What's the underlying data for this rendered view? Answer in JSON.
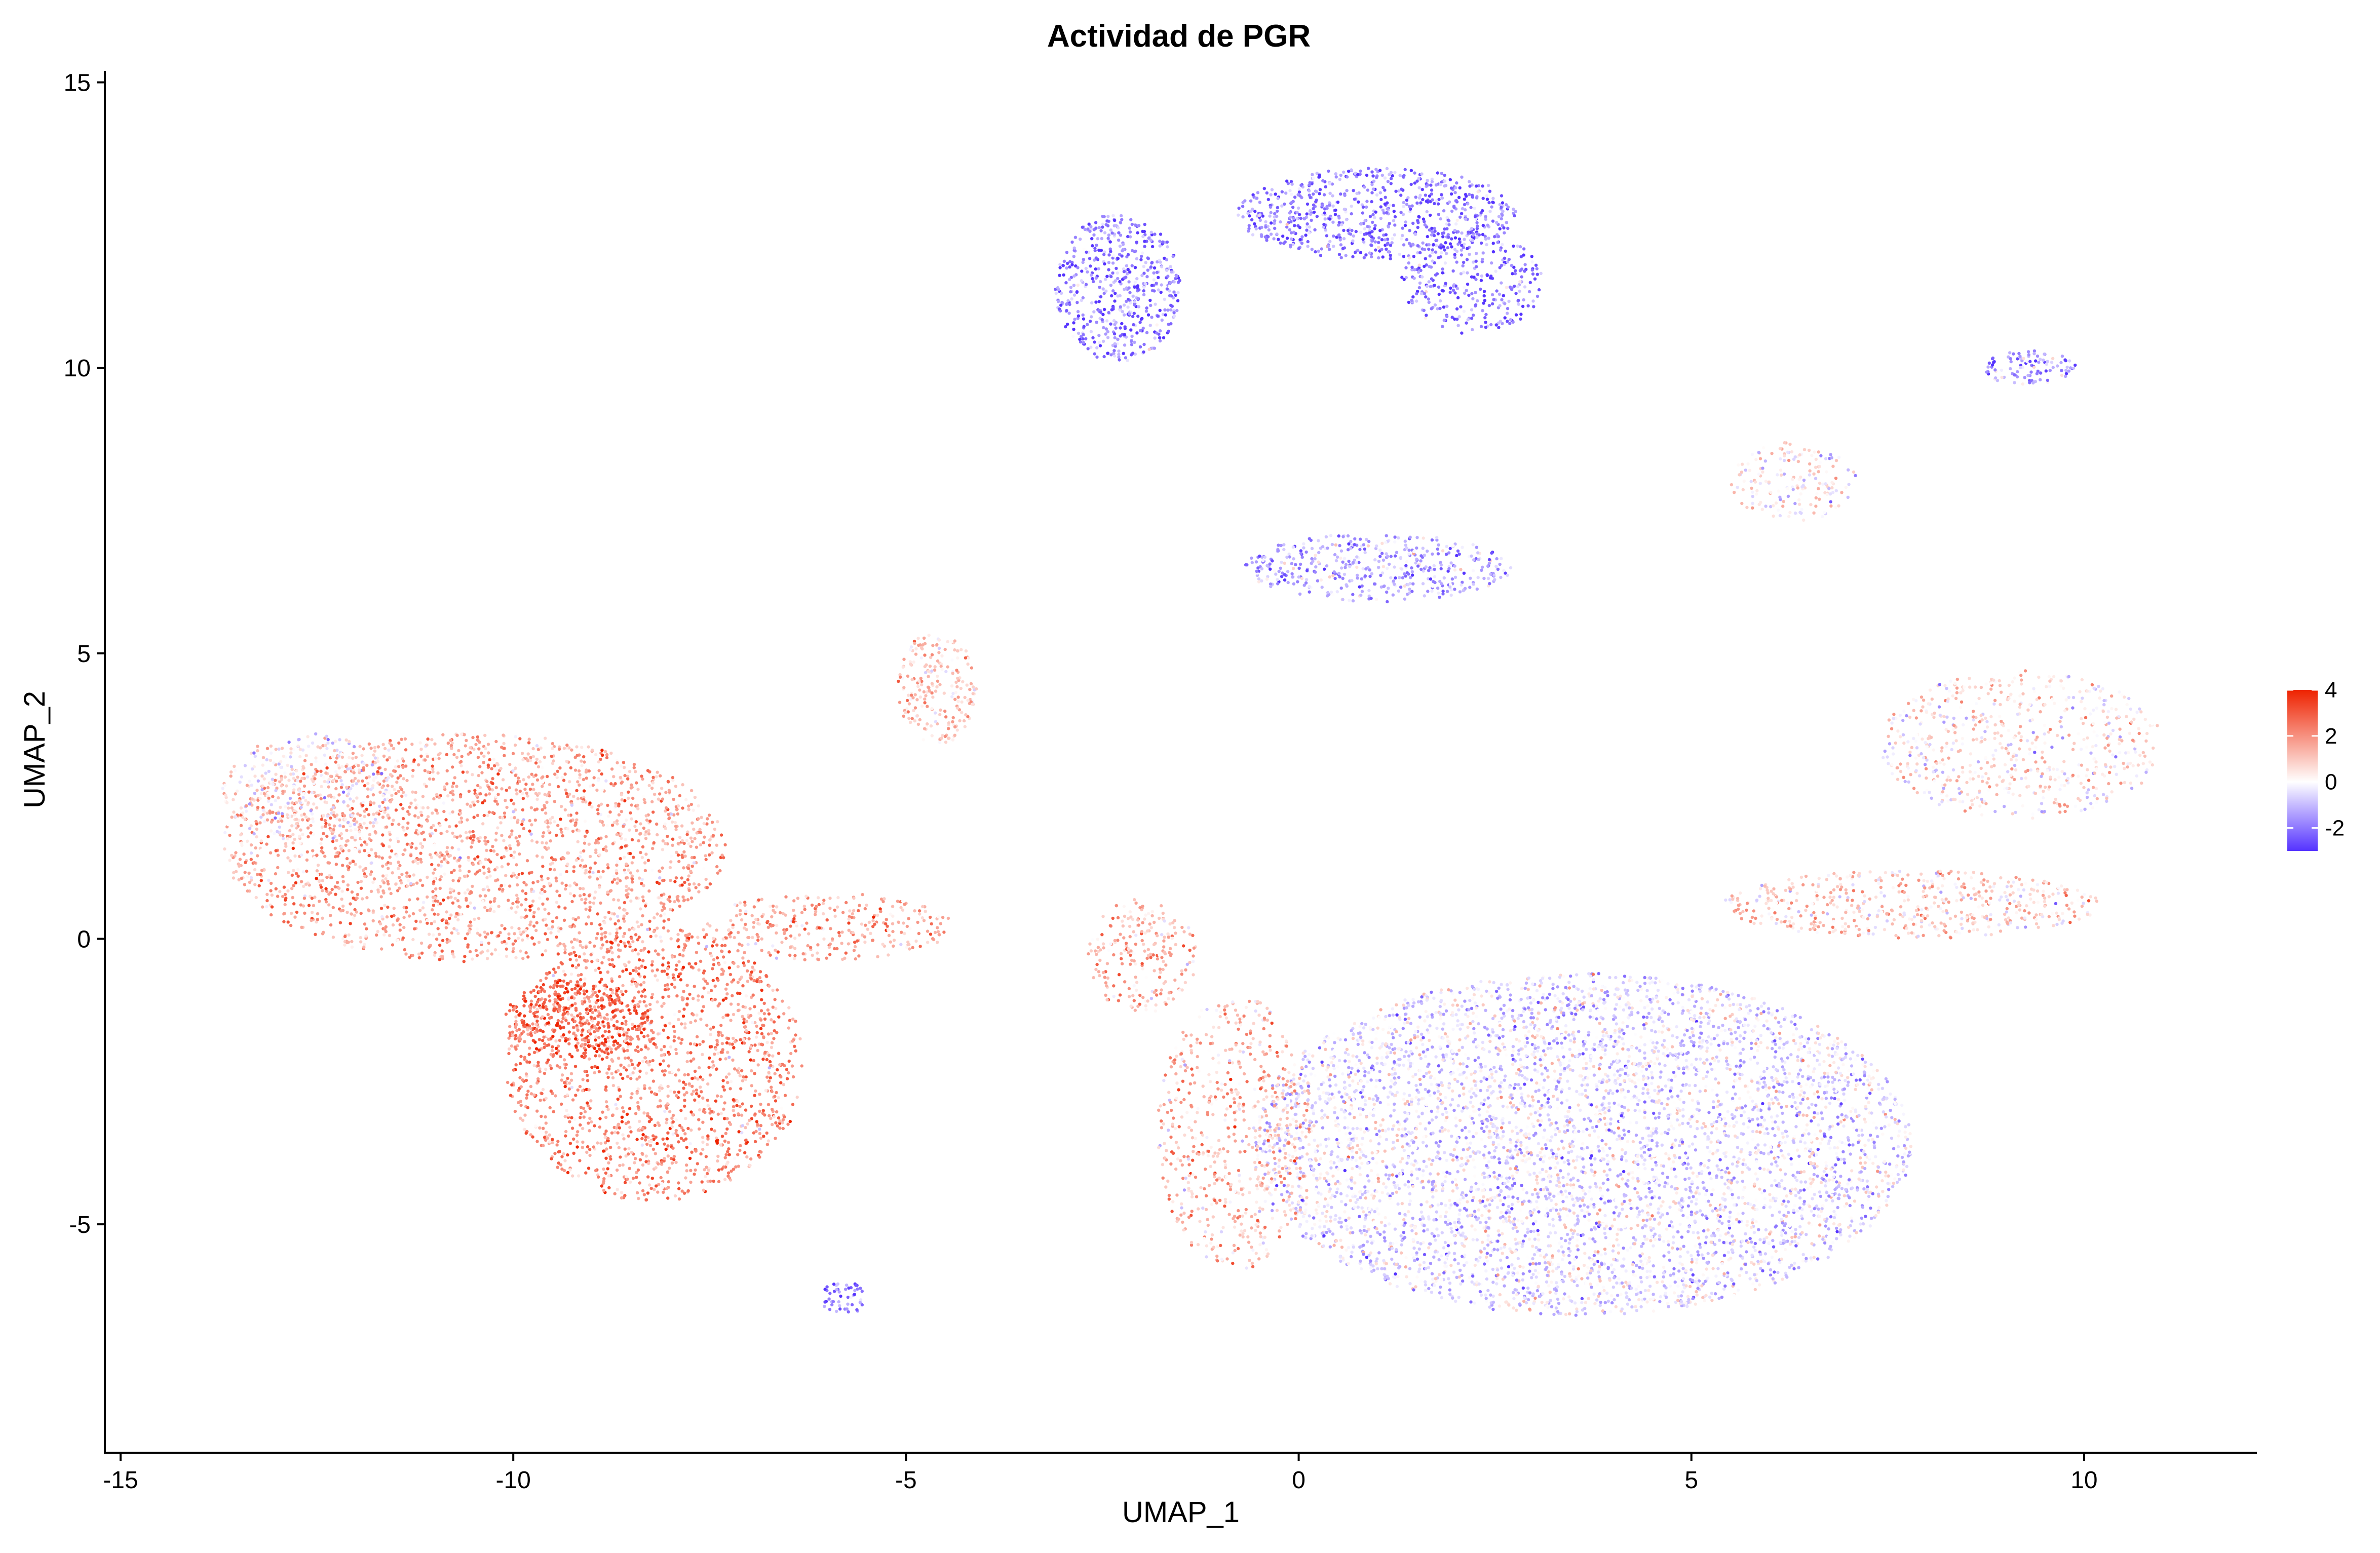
{
  "chart_data": {
    "type": "scatter",
    "title": "Actividad de PGR",
    "xlabel": "UMAP_1",
    "ylabel": "UMAP_2",
    "xlim": [
      -15.2,
      12.2
    ],
    "ylim": [
      -9.0,
      15.2
    ],
    "x_ticks": [
      -15,
      -10,
      -5,
      0,
      5,
      10
    ],
    "y_ticks": [
      -5,
      0,
      5,
      10,
      15
    ],
    "x_tick_labels": [
      "-15",
      "-10",
      "-5",
      "0",
      "5",
      "10"
    ],
    "y_tick_labels": [
      "-5",
      "0",
      "5",
      "10",
      "15"
    ],
    "grid": false,
    "legend": {
      "placement": "right",
      "type": "colorbar",
      "ticks": [
        4,
        2,
        0,
        -2
      ],
      "tick_labels": [
        "4",
        "2",
        "0",
        "-2"
      ],
      "range": [
        -3,
        4
      ],
      "colors": {
        "low": "#5533ff",
        "mid": "#ffffff",
        "high": "#ee2200"
      }
    },
    "clusters": [
      {
        "cx": -10.5,
        "cy": 1.6,
        "rx": 3.2,
        "ry": 2.0,
        "n": 9000,
        "activity": 1.6
      },
      {
        "cx": -8.2,
        "cy": -2.2,
        "rx": 1.9,
        "ry": 2.4,
        "n": 6500,
        "activity": 2.0
      },
      {
        "cx": -9.2,
        "cy": -1.4,
        "rx": 0.9,
        "ry": 0.7,
        "n": 1500,
        "activity": 2.8
      },
      {
        "cx": -12.6,
        "cy": 2.6,
        "rx": 1.1,
        "ry": 1.0,
        "n": 1400,
        "activity": 0.3
      },
      {
        "cx": -6.0,
        "cy": 0.2,
        "rx": 1.6,
        "ry": 0.6,
        "n": 1200,
        "activity": 1.5
      },
      {
        "cx": -4.6,
        "cy": 4.4,
        "rx": 0.5,
        "ry": 1.0,
        "n": 900,
        "activity": 1.0
      },
      {
        "cx": -2.3,
        "cy": 11.4,
        "rx": 0.8,
        "ry": 1.3,
        "n": 2200,
        "activity": -1.8
      },
      {
        "cx": 1.0,
        "cy": 12.7,
        "rx": 1.8,
        "ry": 0.8,
        "n": 3000,
        "activity": -1.9
      },
      {
        "cx": 2.2,
        "cy": 11.5,
        "rx": 0.9,
        "ry": 0.9,
        "n": 1200,
        "activity": -2.1
      },
      {
        "cx": 1.0,
        "cy": 6.5,
        "rx": 1.7,
        "ry": 0.6,
        "n": 1800,
        "activity": -1.2
      },
      {
        "cx": 9.2,
        "cy": 3.4,
        "rx": 1.8,
        "ry": 1.3,
        "n": 2600,
        "activity": 0.4
      },
      {
        "cx": 6.3,
        "cy": 8.0,
        "rx": 0.8,
        "ry": 0.7,
        "n": 700,
        "activity": 0.2
      },
      {
        "cx": 9.3,
        "cy": 10.0,
        "rx": 0.6,
        "ry": 0.3,
        "n": 400,
        "activity": -1.5
      },
      {
        "cx": 3.6,
        "cy": -3.6,
        "rx": 4.2,
        "ry": 3.0,
        "n": 22000,
        "activity": -0.5
      },
      {
        "cx": -0.8,
        "cy": -3.4,
        "rx": 1.0,
        "ry": 2.4,
        "n": 2500,
        "activity": 1.2
      },
      {
        "cx": -2.0,
        "cy": -0.3,
        "rx": 0.7,
        "ry": 1.0,
        "n": 900,
        "activity": 1.3
      },
      {
        "cx": 7.8,
        "cy": 0.6,
        "rx": 2.4,
        "ry": 0.6,
        "n": 2200,
        "activity": 0.8
      },
      {
        "cx": -5.8,
        "cy": -6.3,
        "rx": 0.3,
        "ry": 0.3,
        "n": 200,
        "activity": -2.0
      }
    ]
  }
}
